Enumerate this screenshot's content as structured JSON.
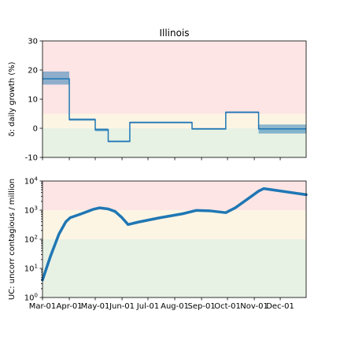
{
  "chart_data": [
    {
      "type": "line",
      "title": "Illinois",
      "ylabel": "δ: daily growth (%)",
      "xlabel": "",
      "ylim": [
        -10,
        30
      ],
      "yticks": [
        -10,
        0,
        10,
        20,
        30
      ],
      "xlim": [
        "2020-03-01",
        "2020-12-31"
      ],
      "zones": [
        {
          "from": 5,
          "to": 30,
          "color": "#fde5e5"
        },
        {
          "from": 0,
          "to": 5,
          "color": "#fdf5e4"
        },
        {
          "from": -10,
          "to": 0,
          "color": "#e7f1e4"
        }
      ],
      "series": [
        {
          "color": "#1f77b4",
          "steps": [
            {
              "start": "2020-03-01",
              "end": "2020-04-01",
              "value": 17,
              "low": 15,
              "high": 19.5
            },
            {
              "start": "2020-04-01",
              "end": "2020-05-01",
              "value": 3,
              "low": 2.6,
              "high": 3.4
            },
            {
              "start": "2020-05-01",
              "end": "2020-05-16",
              "value": -0.5,
              "low": -1,
              "high": 0
            },
            {
              "start": "2020-05-16",
              "end": "2020-06-10",
              "value": -4.5,
              "low": -4.8,
              "high": -4.2
            },
            {
              "start": "2020-06-10",
              "end": "2020-08-21",
              "value": 2,
              "low": 1.7,
              "high": 2.3
            },
            {
              "start": "2020-08-21",
              "end": "2020-09-29",
              "value": -0.2,
              "low": -0.5,
              "high": 0.1
            },
            {
              "start": "2020-09-29",
              "end": "2020-11-06",
              "value": 5.5,
              "low": 5.2,
              "high": 5.8
            },
            {
              "start": "2020-11-06",
              "end": "2020-12-31",
              "value": -0.2,
              "low": -1.8,
              "high": 1.3
            }
          ]
        }
      ]
    },
    {
      "type": "line",
      "ylabel": "UC: uncorr contagious / million",
      "xlabel": "",
      "yscale": "log",
      "ylim": [
        1,
        10000
      ],
      "yticks": [
        1,
        10,
        100,
        1000,
        10000
      ],
      "ytick_labels": [
        {
          "base": "10",
          "exp": "0"
        },
        {
          "base": "10",
          "exp": "1"
        },
        {
          "base": "10",
          "exp": "2"
        },
        {
          "base": "10",
          "exp": "3"
        },
        {
          "base": "10",
          "exp": "4"
        }
      ],
      "xlim": [
        "2020-03-01",
        "2020-12-31"
      ],
      "xticks": [
        "2020-03-01",
        "2020-04-01",
        "2020-05-01",
        "2020-06-01",
        "2020-07-01",
        "2020-08-01",
        "2020-09-01",
        "2020-10-01",
        "2020-11-01",
        "2020-12-01"
      ],
      "xtick_labels": [
        "Mar-01",
        "Apr-01",
        "May-01",
        "Jun-01",
        "Jul-01",
        "Aug-01",
        "Sep-01",
        "Oct-01",
        "Nov-01",
        "Dec-01"
      ],
      "zones": [
        {
          "from": 1000,
          "to": 10000,
          "color": "#fde5e5"
        },
        {
          "from": 100,
          "to": 1000,
          "color": "#fdf5e4"
        },
        {
          "from": 1,
          "to": 100,
          "color": "#e7f1e4"
        }
      ],
      "series": [
        {
          "color": "#1f77b4",
          "points": [
            [
              "2020-03-01",
              4
            ],
            [
              "2020-03-10",
              25
            ],
            [
              "2020-03-20",
              150
            ],
            [
              "2020-03-28",
              400
            ],
            [
              "2020-04-02",
              550
            ],
            [
              "2020-04-15",
              750
            ],
            [
              "2020-04-28",
              1050
            ],
            [
              "2020-05-06",
              1200
            ],
            [
              "2020-05-16",
              1100
            ],
            [
              "2020-05-24",
              900
            ],
            [
              "2020-06-01",
              550
            ],
            [
              "2020-06-08",
              320
            ],
            [
              "2020-06-20",
              390
            ],
            [
              "2020-07-15",
              550
            ],
            [
              "2020-08-10",
              750
            ],
            [
              "2020-08-26",
              980
            ],
            [
              "2020-09-10",
              950
            ],
            [
              "2020-09-29",
              820
            ],
            [
              "2020-10-10",
              1200
            ],
            [
              "2020-10-25",
              2500
            ],
            [
              "2020-11-06",
              4500
            ],
            [
              "2020-11-12",
              5500
            ],
            [
              "2020-12-31",
              3400
            ]
          ]
        }
      ]
    }
  ]
}
